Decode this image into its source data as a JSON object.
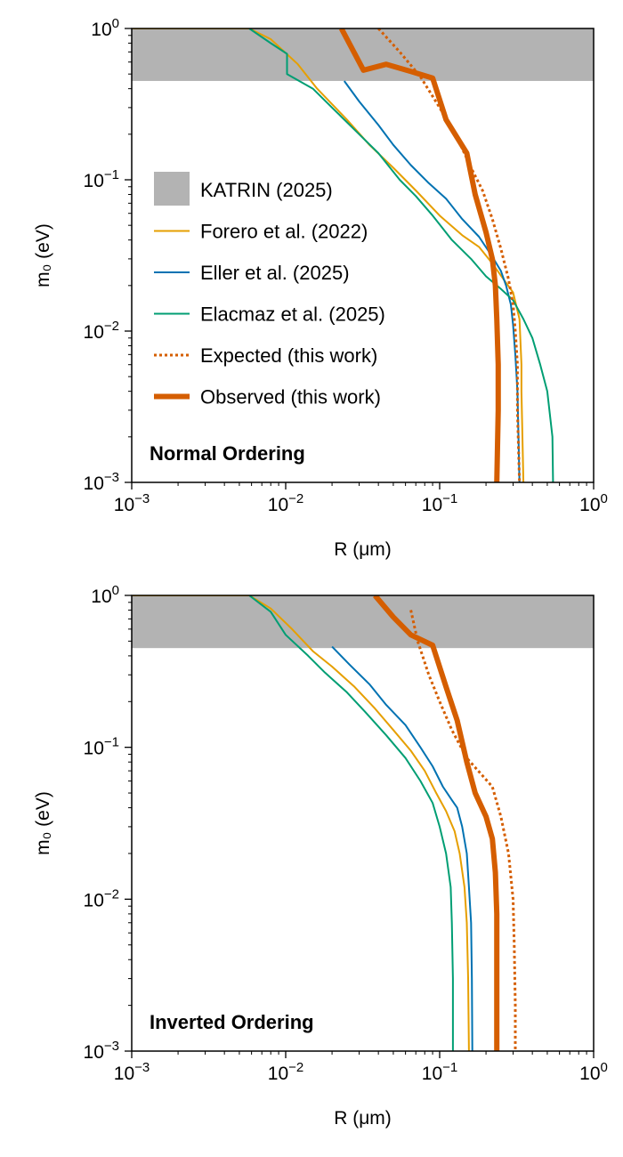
{
  "chart_data": [
    {
      "type": "line",
      "annotation": "Normal Ordering",
      "xlabel": "R (μm)",
      "ylabel": "m₀ (eV)",
      "xscale": "log",
      "yscale": "log",
      "xlim": [
        0.001,
        1
      ],
      "ylim": [
        0.001,
        1
      ],
      "x_tick_labels": [
        {
          "base": "10",
          "exp": "−3"
        },
        {
          "base": "10",
          "exp": "−2"
        },
        {
          "base": "10",
          "exp": "−1"
        },
        {
          "base": "10",
          "exp": "0"
        }
      ],
      "y_tick_labels": [
        {
          "base": "10",
          "exp": "−3"
        },
        {
          "base": "10",
          "exp": "−2"
        },
        {
          "base": "10",
          "exp": "−1"
        },
        {
          "base": "10",
          "exp": "0"
        }
      ],
      "grid": false,
      "legend_position": "center-left",
      "shaded_bands": [
        {
          "name": "KATRIN (2025)",
          "color": "#b3b3b3",
          "y_range": [
            0.45,
            1
          ]
        }
      ],
      "series": [
        {
          "name": "Forero et al. (2022)",
          "color": "#e69f00",
          "style": "solid",
          "width": "thin",
          "points": [
            [
              0.001,
              1.0
            ],
            [
              0.0058,
              1.0
            ],
            [
              0.008,
              0.85
            ],
            [
              0.012,
              0.58
            ],
            [
              0.016,
              0.4
            ],
            [
              0.025,
              0.25
            ],
            [
              0.035,
              0.17
            ],
            [
              0.05,
              0.12
            ],
            [
              0.07,
              0.085
            ],
            [
              0.1,
              0.058
            ],
            [
              0.14,
              0.043
            ],
            [
              0.18,
              0.036
            ],
            [
              0.22,
              0.028
            ],
            [
              0.26,
              0.022
            ],
            [
              0.3,
              0.018
            ],
            [
              0.33,
              0.012
            ],
            [
              0.34,
              0.006
            ],
            [
              0.34,
              0.004
            ],
            [
              0.35,
              0.001
            ]
          ]
        },
        {
          "name": "Eller et al. (2025)",
          "color": "#0072b2",
          "style": "solid",
          "width": "thin",
          "points": [
            [
              0.024,
              0.45
            ],
            [
              0.03,
              0.33
            ],
            [
              0.04,
              0.23
            ],
            [
              0.05,
              0.17
            ],
            [
              0.065,
              0.125
            ],
            [
              0.085,
              0.095
            ],
            [
              0.11,
              0.075
            ],
            [
              0.14,
              0.055
            ],
            [
              0.18,
              0.042
            ],
            [
              0.22,
              0.031
            ],
            [
              0.25,
              0.025
            ],
            [
              0.27,
              0.02
            ],
            [
              0.29,
              0.015
            ],
            [
              0.3,
              0.011
            ],
            [
              0.31,
              0.007
            ],
            [
              0.32,
              0.004
            ],
            [
              0.33,
              0.001
            ]
          ]
        },
        {
          "name": "Elacmaz et al. (2025)",
          "color": "#009e73",
          "style": "solid",
          "width": "thin",
          "points": [
            [
              0.0058,
              1.0
            ],
            [
              0.008,
              0.8
            ],
            [
              0.0102,
              0.68
            ],
            [
              0.0102,
              0.5
            ],
            [
              0.015,
              0.4
            ],
            [
              0.02,
              0.3
            ],
            [
              0.03,
              0.2
            ],
            [
              0.04,
              0.15
            ],
            [
              0.055,
              0.1
            ],
            [
              0.07,
              0.078
            ],
            [
              0.09,
              0.058
            ],
            [
              0.12,
              0.04
            ],
            [
              0.16,
              0.03
            ],
            [
              0.2,
              0.023
            ],
            [
              0.25,
              0.019
            ],
            [
              0.3,
              0.016
            ],
            [
              0.35,
              0.012
            ],
            [
              0.4,
              0.009
            ],
            [
              0.45,
              0.006
            ],
            [
              0.5,
              0.004
            ],
            [
              0.54,
              0.002
            ],
            [
              0.545,
              0.001
            ]
          ]
        },
        {
          "name": "Expected (this work)",
          "color": "#d55e00",
          "style": "dotted",
          "width": "medium",
          "points": [
            [
              0.04,
              1.0
            ],
            [
              0.055,
              0.7
            ],
            [
              0.075,
              0.48
            ],
            [
              0.1,
              0.3
            ],
            [
              0.13,
              0.19
            ],
            [
              0.16,
              0.12
            ],
            [
              0.19,
              0.085
            ],
            [
              0.22,
              0.055
            ],
            [
              0.25,
              0.035
            ],
            [
              0.28,
              0.022
            ],
            [
              0.3,
              0.015
            ],
            [
              0.31,
              0.01
            ],
            [
              0.32,
              0.006
            ],
            [
              0.32,
              0.003
            ],
            [
              0.33,
              0.001
            ]
          ]
        },
        {
          "name": "Observed (this work)",
          "color": "#d55e00",
          "style": "solid",
          "width": "thick",
          "points": [
            [
              0.023,
              1.0
            ],
            [
              0.032,
              0.53
            ],
            [
              0.045,
              0.58
            ],
            [
              0.065,
              0.52
            ],
            [
              0.09,
              0.47
            ],
            [
              0.11,
              0.25
            ],
            [
              0.15,
              0.15
            ],
            [
              0.17,
              0.08
            ],
            [
              0.2,
              0.045
            ],
            [
              0.22,
              0.03
            ],
            [
              0.23,
              0.02
            ],
            [
              0.235,
              0.012
            ],
            [
              0.24,
              0.006
            ],
            [
              0.24,
              0.003
            ],
            [
              0.235,
              0.001
            ]
          ]
        }
      ]
    },
    {
      "type": "line",
      "annotation": "Inverted Ordering",
      "xlabel": "R (μm)",
      "ylabel": "m₀ (eV)",
      "xscale": "log",
      "yscale": "log",
      "xlim": [
        0.001,
        1
      ],
      "ylim": [
        0.001,
        1
      ],
      "x_tick_labels": [
        {
          "base": "10",
          "exp": "−3"
        },
        {
          "base": "10",
          "exp": "−2"
        },
        {
          "base": "10",
          "exp": "−1"
        },
        {
          "base": "10",
          "exp": "0"
        }
      ],
      "y_tick_labels": [
        {
          "base": "10",
          "exp": "−3"
        },
        {
          "base": "10",
          "exp": "−2"
        },
        {
          "base": "10",
          "exp": "−1"
        },
        {
          "base": "10",
          "exp": "0"
        }
      ],
      "grid": false,
      "shaded_bands": [
        {
          "name": "KATRIN (2025)",
          "color": "#b3b3b3",
          "y_range": [
            0.45,
            1
          ]
        }
      ],
      "series": [
        {
          "name": "Forero et al. (2022)",
          "color": "#e69f00",
          "style": "solid",
          "width": "thin",
          "points": [
            [
              0.001,
              1.0
            ],
            [
              0.0058,
              1.0
            ],
            [
              0.008,
              0.82
            ],
            [
              0.011,
              0.6
            ],
            [
              0.015,
              0.43
            ],
            [
              0.02,
              0.34
            ],
            [
              0.028,
              0.25
            ],
            [
              0.038,
              0.18
            ],
            [
              0.05,
              0.13
            ],
            [
              0.065,
              0.095
            ],
            [
              0.08,
              0.07
            ],
            [
              0.095,
              0.05
            ],
            [
              0.11,
              0.038
            ],
            [
              0.125,
              0.028
            ],
            [
              0.135,
              0.02
            ],
            [
              0.145,
              0.012
            ],
            [
              0.15,
              0.007
            ],
            [
              0.153,
              0.003
            ],
            [
              0.155,
              0.001
            ]
          ]
        },
        {
          "name": "Eller et al. (2025)",
          "color": "#0072b2",
          "style": "solid",
          "width": "thin",
          "points": [
            [
              0.02,
              0.46
            ],
            [
              0.026,
              0.35
            ],
            [
              0.035,
              0.26
            ],
            [
              0.045,
              0.19
            ],
            [
              0.06,
              0.14
            ],
            [
              0.075,
              0.1
            ],
            [
              0.09,
              0.075
            ],
            [
              0.105,
              0.055
            ],
            [
              0.12,
              0.045
            ],
            [
              0.13,
              0.04
            ],
            [
              0.14,
              0.03
            ],
            [
              0.15,
              0.02
            ],
            [
              0.155,
              0.012
            ],
            [
              0.16,
              0.007
            ],
            [
              0.162,
              0.003
            ],
            [
              0.163,
              0.001
            ]
          ]
        },
        {
          "name": "Elacmaz et al. (2025)",
          "color": "#009e73",
          "style": "solid",
          "width": "thin",
          "points": [
            [
              0.0058,
              1.0
            ],
            [
              0.008,
              0.78
            ],
            [
              0.01,
              0.55
            ],
            [
              0.014,
              0.4
            ],
            [
              0.018,
              0.31
            ],
            [
              0.025,
              0.23
            ],
            [
              0.033,
              0.17
            ],
            [
              0.045,
              0.12
            ],
            [
              0.06,
              0.085
            ],
            [
              0.075,
              0.06
            ],
            [
              0.09,
              0.043
            ],
            [
              0.1,
              0.03
            ],
            [
              0.11,
              0.02
            ],
            [
              0.118,
              0.012
            ],
            [
              0.12,
              0.007
            ],
            [
              0.122,
              0.003
            ],
            [
              0.122,
              0.001
            ]
          ]
        },
        {
          "name": "Expected (this work)",
          "color": "#d55e00",
          "style": "dotted",
          "width": "medium",
          "points": [
            [
              0.065,
              0.8
            ],
            [
              0.072,
              0.5
            ],
            [
              0.085,
              0.3
            ],
            [
              0.1,
              0.2
            ],
            [
              0.12,
              0.13
            ],
            [
              0.15,
              0.085
            ],
            [
              0.19,
              0.065
            ],
            [
              0.22,
              0.055
            ],
            [
              0.25,
              0.035
            ],
            [
              0.28,
              0.02
            ],
            [
              0.3,
              0.01
            ],
            [
              0.305,
              0.005
            ],
            [
              0.31,
              0.002
            ],
            [
              0.31,
              0.001
            ]
          ]
        },
        {
          "name": "Observed (this work)",
          "color": "#d55e00",
          "style": "solid",
          "width": "thick",
          "points": [
            [
              0.038,
              1.0
            ],
            [
              0.05,
              0.72
            ],
            [
              0.065,
              0.55
            ],
            [
              0.09,
              0.47
            ],
            [
              0.11,
              0.25
            ],
            [
              0.13,
              0.15
            ],
            [
              0.15,
              0.08
            ],
            [
              0.17,
              0.05
            ],
            [
              0.2,
              0.035
            ],
            [
              0.22,
              0.025
            ],
            [
              0.23,
              0.015
            ],
            [
              0.235,
              0.008
            ],
            [
              0.235,
              0.003
            ],
            [
              0.235,
              0.001
            ]
          ]
        }
      ]
    }
  ]
}
